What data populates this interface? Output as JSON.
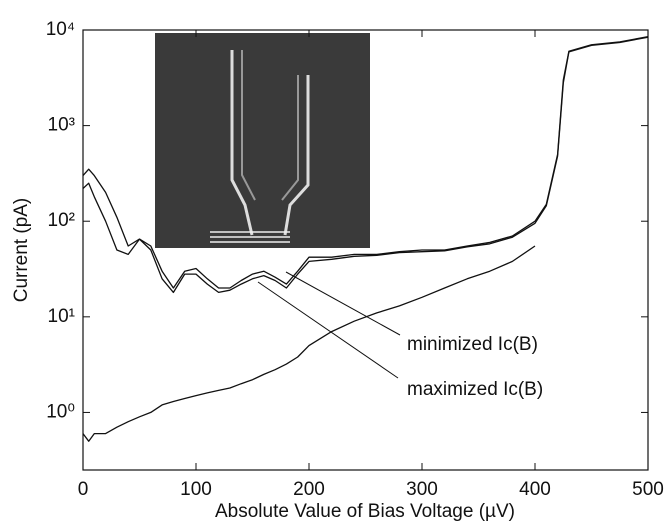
{
  "chart_data": {
    "type": "line",
    "xlabel": "Absolute Value of Bias Voltage (µV)",
    "ylabel": "Current (pA)",
    "ylog": true,
    "x": [
      0,
      5,
      10,
      20,
      30,
      40,
      50,
      60,
      70,
      80,
      90,
      100,
      110,
      120,
      130,
      140,
      150,
      160,
      170,
      180,
      190,
      200,
      220,
      240,
      260,
      280,
      300,
      320,
      340,
      360,
      380,
      400,
      410,
      420,
      425,
      430,
      450,
      475,
      500
    ],
    "series": [
      {
        "name": "minimized Ic(B)",
        "color": "#111111",
        "values": [
          300,
          350,
          300,
          200,
          110,
          55,
          65,
          55,
          30,
          20,
          30,
          32,
          25,
          20,
          20,
          24,
          28,
          30,
          26,
          22,
          30,
          42,
          42,
          45,
          45,
          48,
          50,
          50,
          55,
          60,
          70,
          100,
          150,
          500,
          3000,
          6000,
          7000,
          7500,
          8500
        ]
      },
      {
        "name": "maximized Ic(B)",
        "color": "#111111",
        "values": [
          220,
          250,
          180,
          100,
          50,
          45,
          65,
          50,
          25,
          18,
          28,
          28,
          22,
          18,
          19,
          22,
          25,
          27,
          24,
          20,
          28,
          38,
          40,
          43,
          44,
          47,
          48,
          49,
          54,
          58,
          68,
          95,
          145,
          480,
          2800,
          5900,
          6900,
          7400,
          8400
        ]
      },
      {
        "color": "#111111",
        "values": [
          0.6,
          0.5,
          0.6,
          0.6,
          0.7,
          0.8,
          0.9,
          1.0,
          1.2,
          1.3,
          1.4,
          1.5,
          1.6,
          1.7,
          1.8,
          2.0,
          2.2,
          2.5,
          2.8,
          3.2,
          3.8,
          5,
          7,
          9,
          11,
          13,
          16,
          20,
          25,
          30,
          38,
          55,
          null,
          null,
          null,
          null,
          null,
          null,
          null
        ]
      }
    ],
    "xlim": [
      0,
      500
    ],
    "xticks": [
      0,
      100,
      200,
      300,
      400,
      500
    ],
    "ylim": [
      0.25,
      10000
    ],
    "yticks": [
      {
        "value": 1,
        "label": "10⁰"
      },
      {
        "value": 10,
        "label": "10¹"
      },
      {
        "value": 100,
        "label": "10²"
      },
      {
        "value": 1000,
        "label": "10³"
      },
      {
        "value": 10000,
        "label": "10⁴"
      }
    ]
  }
}
